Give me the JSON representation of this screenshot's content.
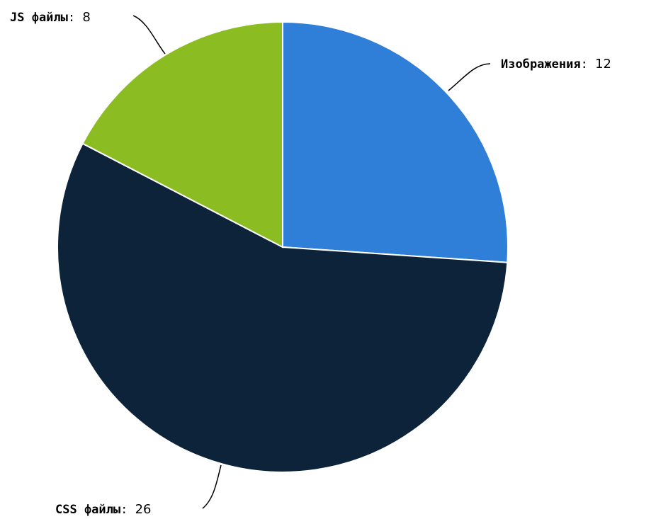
{
  "chart_data": {
    "type": "pie",
    "slices": [
      {
        "label": "Изображения",
        "value": 12,
        "color": "#2f7ed8"
      },
      {
        "label": "CSS файлы",
        "value": 26,
        "color": "#0d233a"
      },
      {
        "label": "JS файлы",
        "value": 8,
        "color": "#8bbc21"
      }
    ],
    "start_angle_deg": 0,
    "direction": "clockwise",
    "legend": "none",
    "label_separator": ":"
  }
}
